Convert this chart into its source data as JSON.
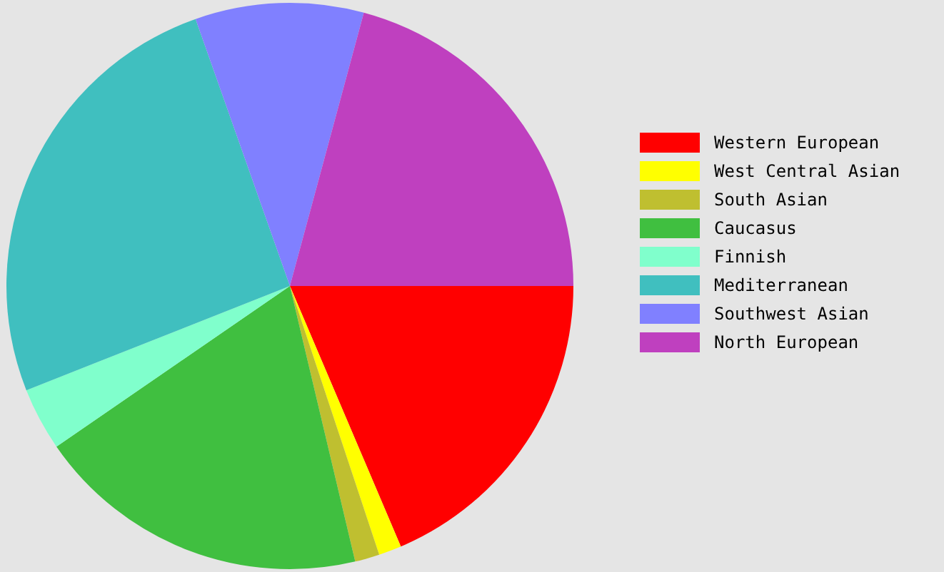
{
  "chart_data": {
    "type": "pie",
    "categories": [
      "Western European",
      "West Central Asian",
      "South Asian",
      "Caucasus",
      "Finnish",
      "Mediterranean",
      "Southwest Asian",
      "North European"
    ],
    "values": [
      18.6,
      1.3,
      1.4,
      19.1,
      3.6,
      25.6,
      9.6,
      20.8
    ],
    "colors": [
      "#ff0000",
      "#ffff00",
      "#bfbf30",
      "#40bf40",
      "#80ffcc",
      "#40bfbf",
      "#8080ff",
      "#bf40bf"
    ],
    "legend": "right"
  }
}
